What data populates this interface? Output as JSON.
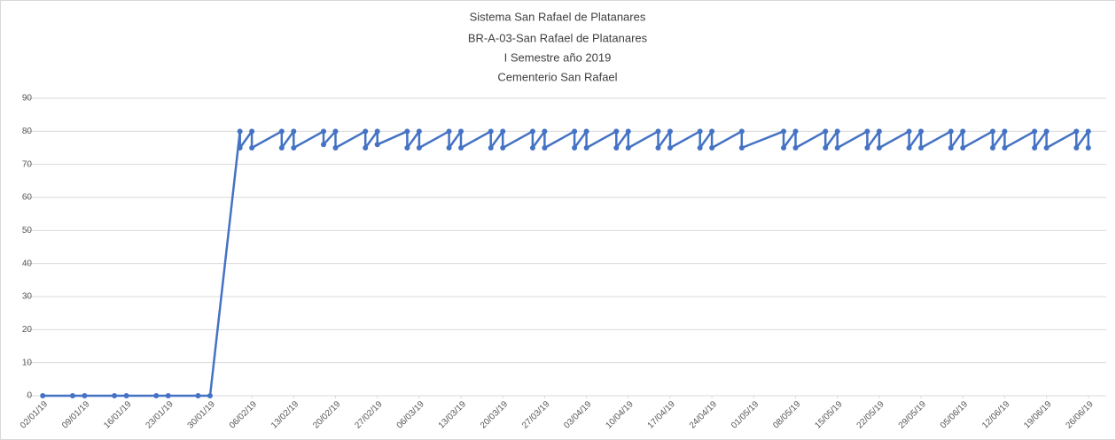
{
  "chart_data": {
    "type": "line",
    "title": [
      "Sistema San Rafael de Platanares",
      "BR-A-03-San Rafael de Platanares",
      "I Semestre año 2019",
      "Cementerio San Rafael"
    ],
    "color": "#4472c4",
    "x": [
      "02/01/19",
      "07/01/19",
      "09/01/19",
      "14/01/19",
      "16/01/19",
      "21/01/19",
      "23/01/19",
      "28/01/19",
      "30/01/19",
      "04/02/19",
      "04/02/19",
      "06/02/19",
      "06/02/19",
      "11/02/19",
      "11/02/19",
      "13/02/19",
      "13/02/19",
      "18/02/19",
      "18/02/19",
      "20/02/19",
      "20/02/19",
      "25/02/19",
      "25/02/19",
      "27/02/19",
      "27/02/19",
      "04/03/19",
      "04/03/19",
      "06/03/19",
      "06/03/19",
      "11/03/19",
      "11/03/19",
      "13/03/19",
      "13/03/19",
      "18/03/19",
      "18/03/19",
      "20/03/19",
      "20/03/19",
      "25/03/19",
      "25/03/19",
      "27/03/19",
      "27/03/19",
      "01/04/19",
      "01/04/19",
      "03/04/19",
      "03/04/19",
      "08/04/19",
      "08/04/19",
      "10/04/19",
      "10/04/19",
      "15/04/19",
      "15/04/19",
      "17/04/19",
      "17/04/19",
      "22/04/19",
      "22/04/19",
      "24/04/19",
      "24/04/19",
      "29/04/19",
      "29/04/19",
      "06/05/19",
      "06/05/19",
      "08/05/19",
      "08/05/19",
      "13/05/19",
      "13/05/19",
      "15/05/19",
      "15/05/19",
      "20/05/19",
      "20/05/19",
      "22/05/19",
      "22/05/19",
      "27/05/19",
      "27/05/19",
      "29/05/19",
      "29/05/19",
      "03/06/19",
      "03/06/19",
      "05/06/19",
      "05/06/19",
      "10/06/19",
      "10/06/19",
      "12/06/19",
      "12/06/19",
      "17/06/19",
      "17/06/19",
      "19/06/19",
      "19/06/19",
      "24/06/19",
      "24/06/19",
      "26/06/19",
      "26/06/19"
    ],
    "values": [
      0,
      0,
      0,
      0,
      0,
      0,
      0,
      0,
      0,
      80,
      75,
      80,
      75,
      80,
      75,
      80,
      75,
      80,
      76,
      80,
      75,
      80,
      75,
      80,
      76,
      80,
      75,
      80,
      75,
      80,
      75,
      80,
      75,
      80,
      75,
      80,
      75,
      80,
      75,
      80,
      75,
      80,
      75,
      80,
      75,
      80,
      75,
      80,
      75,
      80,
      75,
      80,
      75,
      80,
      75,
      80,
      75,
      80,
      75,
      80,
      75,
      80,
      75,
      80,
      75,
      80,
      75,
      80,
      75,
      80,
      75,
      80,
      75,
      80,
      75,
      80,
      75,
      80,
      75,
      80,
      75,
      80,
      75,
      80,
      75,
      80,
      75,
      80,
      75,
      80,
      75
    ],
    "xlim": [
      "30/12/18",
      "29/06/19"
    ],
    "xticks": [
      "02/01/19",
      "09/01/19",
      "16/01/19",
      "23/01/19",
      "30/01/19",
      "06/02/19",
      "13/02/19",
      "20/02/19",
      "27/02/19",
      "06/03/19",
      "13/03/19",
      "20/03/19",
      "27/03/19",
      "03/04/19",
      "10/04/19",
      "17/04/19",
      "24/04/19",
      "01/05/19",
      "08/05/19",
      "15/05/19",
      "22/05/19",
      "29/05/19",
      "05/06/19",
      "12/06/19",
      "19/06/19",
      "26/06/19"
    ],
    "ylim": [
      0,
      90
    ],
    "yticks": [
      0,
      10,
      20,
      30,
      40,
      50,
      60,
      70,
      80,
      90
    ],
    "grid": true
  }
}
